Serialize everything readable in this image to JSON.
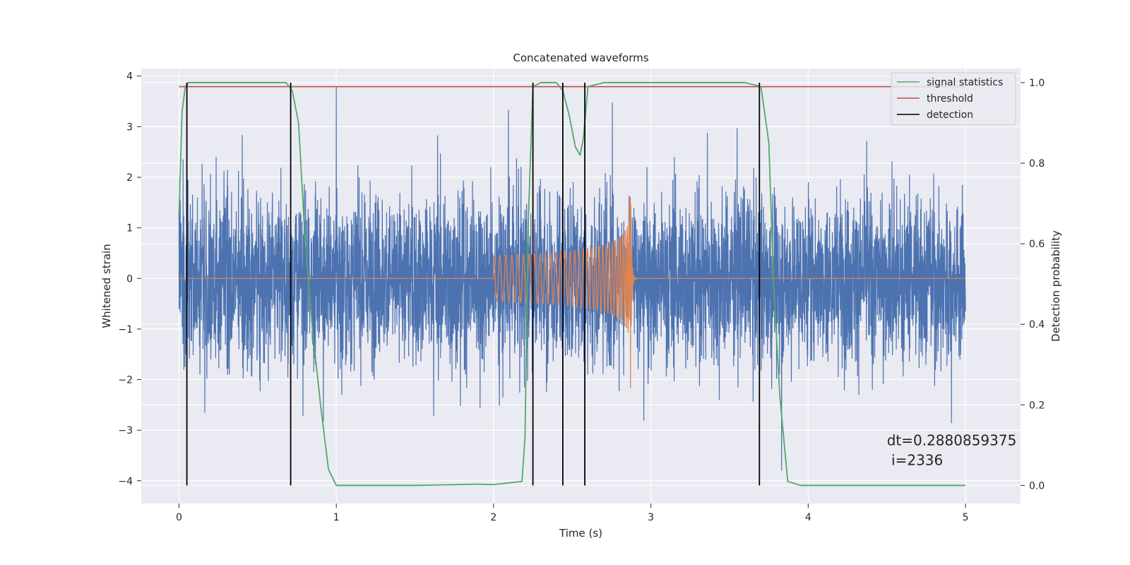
{
  "chart_data": {
    "type": "line",
    "title": "Concatenated waveforms",
    "xlabel": "Time (s)",
    "ylabel_left": "Whitened strain",
    "ylabel_right": "Detection probability",
    "xlim": [
      -0.24,
      5.35
    ],
    "ylim_left": [
      -4.45,
      4.15
    ],
    "ylim_right": [
      -0.045,
      1.035
    ],
    "x_ticks": [
      0,
      1,
      2,
      3,
      4,
      5
    ],
    "y_ticks_left": [
      -4,
      -3,
      -2,
      -1,
      0,
      1,
      2,
      3,
      4
    ],
    "y_ticks_right": [
      0.0,
      0.2,
      0.4,
      0.6,
      0.8,
      1.0
    ],
    "grid": true,
    "legend_position": "top-right",
    "colors": {
      "noisy_strain": "#4c72b0",
      "injected_signal": "#dd8452",
      "signal_statistics": "#55a868",
      "threshold": "#c44e52",
      "detection": "#000000",
      "background": "#eaeaf2"
    },
    "series": [
      {
        "name": "",
        "axis": "left",
        "kind": "noise",
        "x_range": [
          0,
          5
        ],
        "typical_amplitude": 1.4,
        "peak_amplitude": 3.8
      },
      {
        "name": "",
        "axis": "left",
        "kind": "chirp",
        "x_range": [
          2,
          2.95
        ],
        "start_amplitude": 0.45,
        "merger_time": 2.87,
        "merger_peak": 1.6,
        "merger_trough": -2.3
      },
      {
        "name": "signal statistics",
        "axis": "right",
        "x": [
          0,
          0.02,
          0.04,
          0.06,
          0.1,
          0.2,
          0.6,
          0.68,
          0.72,
          0.76,
          0.8,
          0.85,
          0.9,
          0.95,
          1.0,
          1.5,
          1.9,
          2.0,
          2.18,
          2.2,
          2.22,
          2.25,
          2.3,
          2.4,
          2.44,
          2.48,
          2.52,
          2.55,
          2.57,
          2.6,
          2.7,
          3.0,
          3.6,
          3.7,
          3.75,
          3.78,
          3.82,
          3.87,
          3.95,
          4.5,
          5.0
        ],
        "y": [
          0.67,
          0.93,
          0.99,
          1.0,
          1.0,
          1.0,
          1.0,
          1.0,
          0.98,
          0.9,
          0.62,
          0.38,
          0.2,
          0.04,
          0.0,
          0.0,
          0.003,
          0.002,
          0.01,
          0.12,
          0.65,
          0.99,
          1.0,
          1.0,
          0.98,
          0.92,
          0.84,
          0.82,
          0.86,
          0.99,
          1.0,
          1.0,
          1.0,
          0.99,
          0.85,
          0.5,
          0.22,
          0.01,
          0.0,
          0.0,
          0.0
        ]
      },
      {
        "name": "threshold",
        "axis": "right",
        "x": [
          0,
          5
        ],
        "y": [
          0.99,
          0.99
        ]
      },
      {
        "name": "detection",
        "axis": "right",
        "kind": "vertical_lines",
        "x": [
          0.05,
          0.71,
          2.25,
          2.44,
          2.58,
          3.69
        ],
        "y_range": [
          0.0,
          1.0
        ]
      }
    ],
    "annotation": {
      "line1": "dt=0.2880859375",
      "line2": " i=2336",
      "x": 4.5,
      "y": -3.3
    }
  }
}
